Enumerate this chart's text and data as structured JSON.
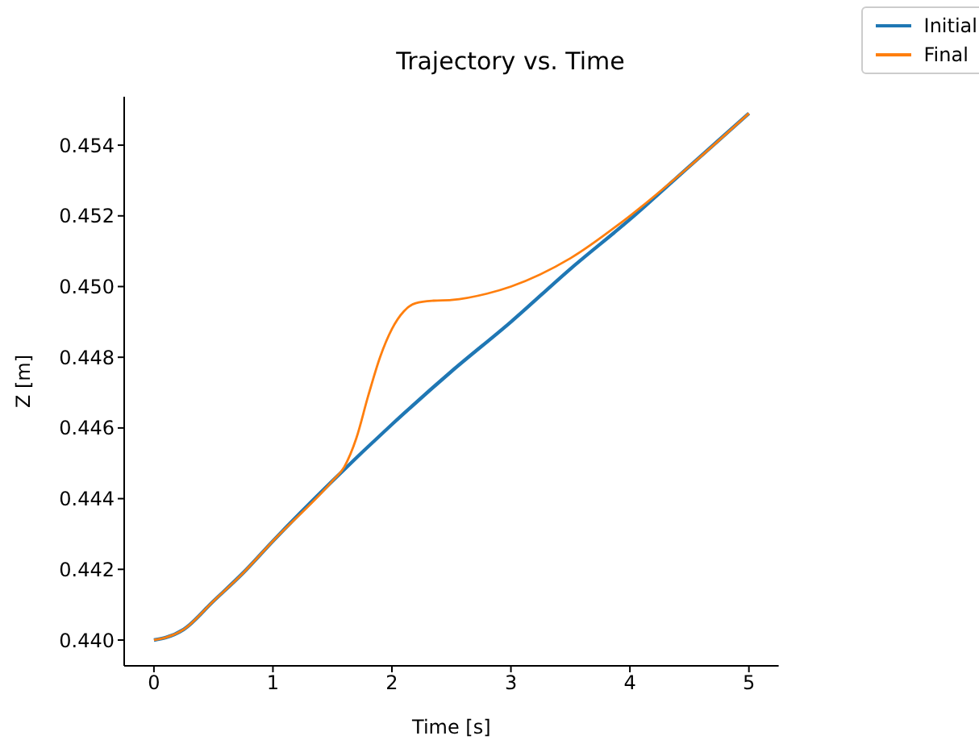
{
  "chart_data": {
    "type": "line",
    "title": "Trajectory vs. Time",
    "xlabel": "Time [s]",
    "ylabel": "Z [m]",
    "xlim": [
      -0.25,
      5.25
    ],
    "xticks": [
      0,
      1,
      2,
      3,
      4,
      5
    ],
    "ylim": [
      0.43927,
      0.45537
    ],
    "yticks": [
      {
        "value": 0.44,
        "label": "0.440"
      },
      {
        "value": 0.442,
        "label": "0.442"
      },
      {
        "value": 0.444,
        "label": "0.444"
      },
      {
        "value": 0.446,
        "label": "0.446"
      },
      {
        "value": 0.448,
        "label": "0.448"
      },
      {
        "value": 0.45,
        "label": "0.450"
      },
      {
        "value": 0.452,
        "label": "0.452"
      },
      {
        "value": 0.454,
        "label": "0.454"
      }
    ],
    "legend": "top right",
    "grid": false,
    "marker": "none",
    "line_style": "solid",
    "series": [
      {
        "name": "Initial",
        "color": "#1f77b4",
        "x": [
          0,
          0.1,
          0.25,
          0.5,
          0.75,
          1,
          1.5,
          2,
          2.5,
          3,
          3.5,
          4,
          4.5,
          5
        ],
        "values": [
          0.44,
          0.44007,
          0.4403,
          0.4411,
          0.4419,
          0.4428,
          0.4445,
          0.4461,
          0.4476,
          0.449,
          0.4505,
          0.4519,
          0.4534,
          0.4549
        ]
      },
      {
        "name": "Final",
        "color": "#ff7f0e",
        "x": [
          0,
          0.1,
          0.25,
          0.5,
          0.75,
          1,
          1.5,
          1.6,
          1.7,
          1.8,
          1.9,
          2,
          2.1,
          2.2,
          2.35,
          2.5,
          2.8,
          3,
          3.5,
          4,
          4.5,
          5
        ],
        "values": [
          0.44,
          0.44007,
          0.4403,
          0.4411,
          0.4419,
          0.4428,
          0.4445,
          0.4449,
          0.4457,
          0.4469,
          0.448,
          0.4488,
          0.4493,
          0.44953,
          0.4496,
          0.44962,
          0.4498,
          0.45,
          0.4508,
          0.452,
          0.4534,
          0.4549
        ]
      }
    ]
  }
}
